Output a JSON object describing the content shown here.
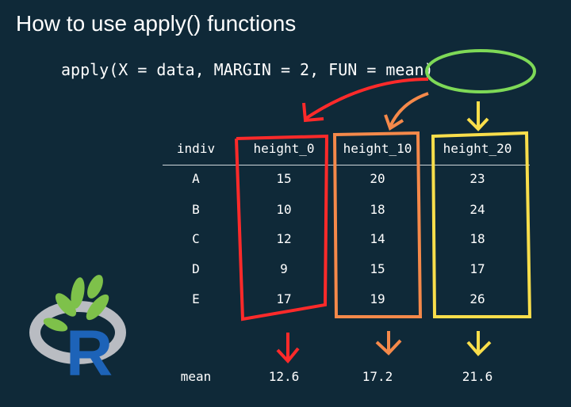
{
  "title": "How to use apply() functions",
  "code": "apply(X = data, MARGIN = 2, FUN = mean)",
  "table": {
    "headers": [
      "indiv",
      "height_0",
      "height_10",
      "height_20"
    ],
    "rows": [
      [
        "A",
        "15",
        "20",
        "23"
      ],
      [
        "B",
        "10",
        "18",
        "24"
      ],
      [
        "C",
        "12",
        "14",
        "18"
      ],
      [
        "D",
        "9",
        "15",
        "17"
      ],
      [
        "E",
        "17",
        "19",
        "26"
      ]
    ],
    "summary": [
      "mean",
      "12.6",
      "17.2",
      "21.6"
    ]
  },
  "colors": {
    "background": "#0f2938",
    "col1": "#ff2a2a",
    "col2": "#f5894a",
    "col3": "#f9de4b",
    "circle": "#7ed957"
  },
  "logo": {
    "name": "R logo",
    "letter": "R"
  }
}
